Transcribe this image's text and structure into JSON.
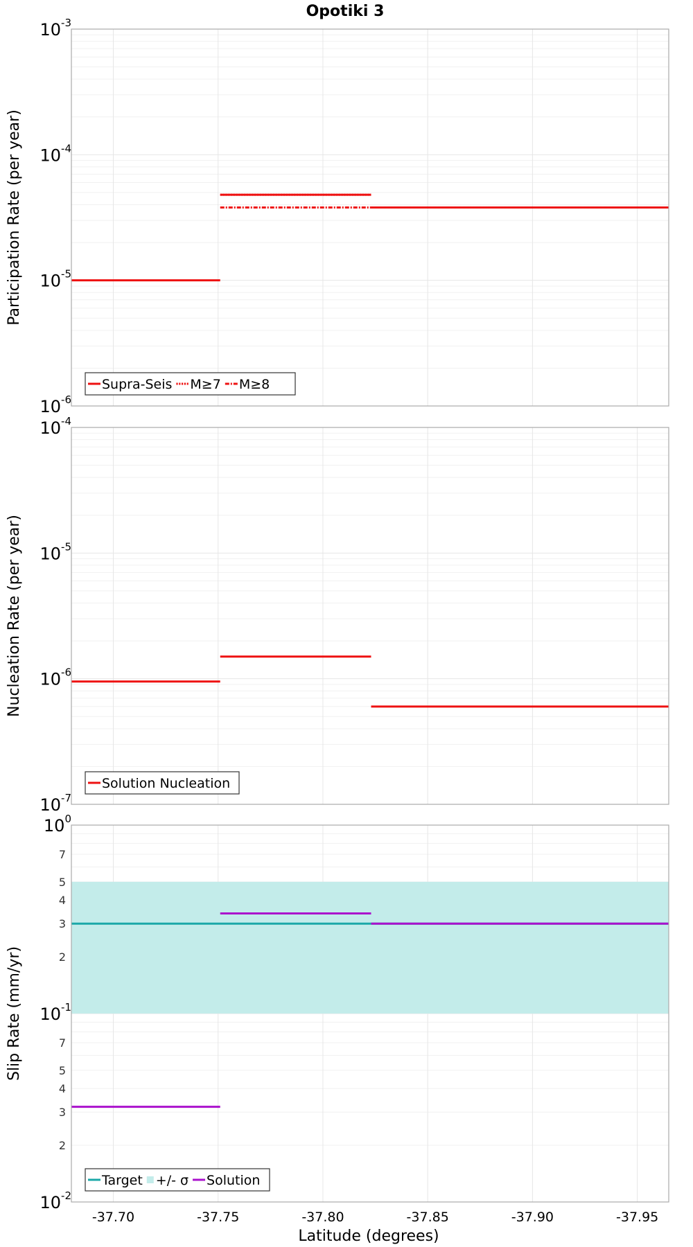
{
  "chart_data": [
    {
      "type": "line",
      "title": "Opotiki 3",
      "xlabel": "",
      "ylabel": "Participation Rate (per year)",
      "yscale": "log",
      "ylim": [
        1e-06,
        0.001
      ],
      "xlim": [
        -37.68,
        -37.965
      ],
      "x_ticks": [
        -37.7,
        -37.75,
        -37.8,
        -37.85,
        -37.9,
        -37.95
      ],
      "y_ticks": [
        {
          "base": "10",
          "exp": "-6",
          "value": 1e-06
        },
        {
          "base": "10",
          "exp": "-5",
          "value": 1e-05
        },
        {
          "base": "10",
          "exp": "-4",
          "value": 0.0001
        },
        {
          "base": "10",
          "exp": "-3",
          "value": 0.001
        }
      ],
      "legend_position": "bottom-left",
      "series": [
        {
          "name": "Supra-Seis",
          "color": "#ee1111",
          "style": "solid",
          "segments": [
            {
              "x": [
                -37.68,
                -37.751
              ],
              "y": 1e-05
            },
            {
              "x": [
                -37.751,
                -37.823
              ],
              "y": 4.8e-05
            },
            {
              "x": [
                -37.823,
                -37.965
              ],
              "y": 3.8e-05
            }
          ]
        },
        {
          "name": "M≥7",
          "color": "#ee1111",
          "style": "dotted",
          "segments": [
            {
              "x": [
                -37.751,
                -37.823
              ],
              "y": 4.8e-05
            },
            {
              "x": [
                -37.823,
                -37.965
              ],
              "y": 3.8e-05
            }
          ]
        },
        {
          "name": "M≥8",
          "color": "#ee1111",
          "style": "dashdot",
          "segments": [
            {
              "x": [
                -37.751,
                -37.823
              ],
              "y": 3.8e-05
            }
          ]
        }
      ]
    },
    {
      "type": "line",
      "title": "",
      "xlabel": "",
      "ylabel": "Nucleation Rate (per year)",
      "yscale": "log",
      "ylim": [
        1e-07,
        0.0001
      ],
      "xlim": [
        -37.68,
        -37.965
      ],
      "y_ticks": [
        {
          "base": "10",
          "exp": "-7",
          "value": 1e-07
        },
        {
          "base": "10",
          "exp": "-6",
          "value": 1e-06
        },
        {
          "base": "10",
          "exp": "-5",
          "value": 1e-05
        },
        {
          "base": "10",
          "exp": "-4",
          "value": 0.0001
        }
      ],
      "legend_position": "bottom-left",
      "series": [
        {
          "name": "Solution Nucleation",
          "color": "#ee1111",
          "style": "solid",
          "segments": [
            {
              "x": [
                -37.68,
                -37.751
              ],
              "y": 9.5e-07
            },
            {
              "x": [
                -37.751,
                -37.823
              ],
              "y": 1.5e-06
            },
            {
              "x": [
                -37.823,
                -37.965
              ],
              "y": 6e-07
            }
          ]
        }
      ]
    },
    {
      "type": "line",
      "title": "",
      "xlabel": "Latitude (degrees)",
      "ylabel": "Slip Rate (mm/yr)",
      "yscale": "log",
      "ylim": [
        0.01,
        1
      ],
      "xlim": [
        -37.68,
        -37.965
      ],
      "x_ticks": [
        -37.7,
        -37.75,
        -37.8,
        -37.85,
        -37.9,
        -37.95
      ],
      "x_tick_labels": [
        "-37.70",
        "-37.75",
        "-37.80",
        "-37.85",
        "-37.90",
        "-37.95"
      ],
      "y_ticks": [
        {
          "base": "10",
          "exp": "-2",
          "value": 0.01
        },
        {
          "base": "10",
          "exp": "-1",
          "value": 0.1
        },
        {
          "base": "10",
          "exp": "0",
          "value": 1
        }
      ],
      "y_minor_labels": [
        {
          "label": "2",
          "value": 0.02
        },
        {
          "label": "3",
          "value": 0.03
        },
        {
          "label": "4",
          "value": 0.04
        },
        {
          "label": "5",
          "value": 0.05
        },
        {
          "label": "7",
          "value": 0.07
        },
        {
          "label": "2",
          "value": 0.2
        },
        {
          "label": "3",
          "value": 0.3
        },
        {
          "label": "4",
          "value": 0.4
        },
        {
          "label": "5",
          "value": 0.5
        },
        {
          "label": "7",
          "value": 0.7
        }
      ],
      "legend_position": "bottom-left",
      "band": {
        "name": "+/- σ",
        "color": "#c3ecea",
        "x": [
          -37.68,
          -37.965
        ],
        "y": [
          0.1,
          0.5
        ]
      },
      "series": [
        {
          "name": "Target",
          "color": "#1ba8a8",
          "style": "solid",
          "segments": [
            {
              "x": [
                -37.68,
                -37.965
              ],
              "y": 0.3
            }
          ]
        },
        {
          "name": "Solution",
          "color": "#aa11cc",
          "style": "solid",
          "segments": [
            {
              "x": [
                -37.68,
                -37.751
              ],
              "y": 0.032
            },
            {
              "x": [
                -37.751,
                -37.823
              ],
              "y": 0.34
            },
            {
              "x": [
                -37.823,
                -37.965
              ],
              "y": 0.3
            }
          ]
        }
      ],
      "legend": [
        "Target",
        "+/- σ",
        "Solution"
      ]
    }
  ]
}
